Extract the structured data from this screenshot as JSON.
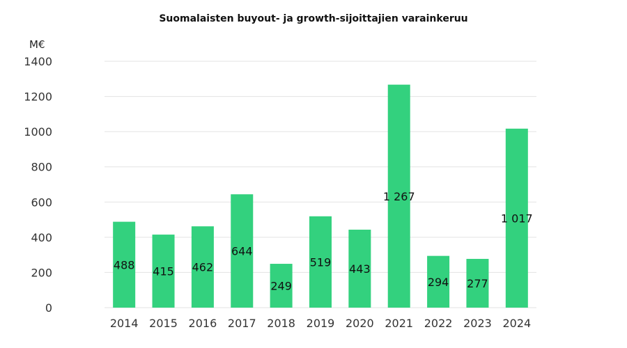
{
  "chart_data": {
    "type": "bar",
    "title": "Suomalaisten buyout- ja growth-sijoittajien varainkeruu",
    "ylabel": "M€",
    "xlabel": "",
    "categories": [
      "2014",
      "2015",
      "2016",
      "2017",
      "2018",
      "2019",
      "2020",
      "2021",
      "2022",
      "2023",
      "2024"
    ],
    "values": [
      488,
      415,
      462,
      644,
      249,
      519,
      443,
      1267,
      294,
      277,
      1017
    ],
    "data_labels": [
      "488",
      "415",
      "462",
      "644",
      "249",
      "519",
      "443",
      "1 267",
      "294",
      "277",
      "1 017"
    ],
    "ylim": [
      0,
      1400
    ],
    "yticks": [
      0,
      200,
      400,
      600,
      800,
      1000,
      1200,
      1400
    ],
    "grid": true,
    "bar_color": "#33d17e",
    "grid_color": "#e3e3e3",
    "legend": "none"
  }
}
